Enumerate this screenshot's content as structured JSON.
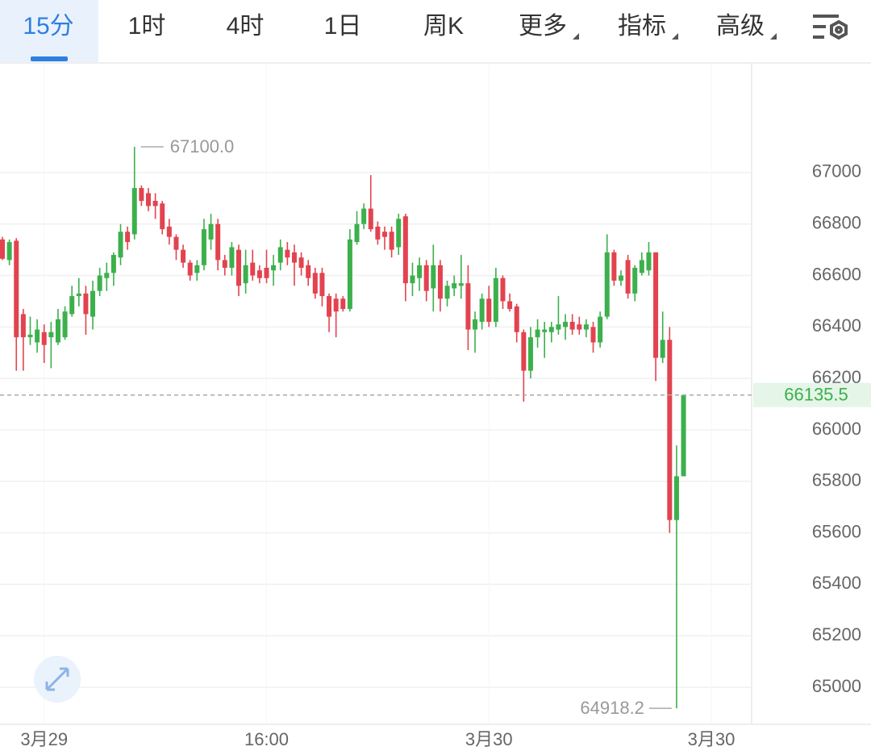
{
  "tabs": [
    "15分",
    "1时",
    "4时",
    "1日",
    "周K",
    "更多",
    "指标",
    "高级"
  ],
  "chart_data": {
    "type": "candlestick",
    "up_color": "#3cb04c",
    "down_color": "#e2434f",
    "open": [
      66740,
      66660,
      66735,
      66450,
      66360,
      66340,
      66380,
      66360,
      66340,
      66360,
      66450,
      66520,
      66530,
      66440,
      66540,
      66590,
      66610,
      66670,
      66770,
      66760,
      66940,
      66920,
      66890,
      66880,
      66790,
      66750,
      66700,
      66650,
      66610,
      66640,
      66740,
      66800,
      66660,
      66630,
      66700,
      66570,
      66650,
      66620,
      66630,
      66620,
      66650,
      66700,
      66690,
      66670,
      66640,
      66610,
      66610,
      66520,
      66510,
      66510,
      66470,
      66730,
      66800,
      66860,
      66790,
      66770,
      66770,
      66710,
      66830,
      66570,
      66590,
      66640,
      66550,
      66640,
      66510,
      66550,
      66560,
      66570,
      66390,
      66420,
      66510,
      66420,
      66590,
      66500,
      66480,
      66380,
      66230,
      66360,
      66380,
      66380,
      66390,
      66400,
      66420,
      66410,
      66390,
      66400,
      66340,
      66440,
      66690,
      66580,
      66660,
      66530,
      66610,
      66620,
      66690,
      66280,
      66350,
      65650,
      65820
    ],
    "high": [
      66750,
      66740,
      66745,
      66470,
      66440,
      66430,
      66410,
      66420,
      66470,
      66480,
      66560,
      66590,
      66560,
      66580,
      66630,
      66650,
      66690,
      66800,
      66790,
      67100,
      66950,
      66940,
      66920,
      66890,
      66820,
      66760,
      66720,
      66660,
      66660,
      66820,
      66840,
      66820,
      66680,
      66730,
      66720,
      66700,
      66700,
      66640,
      66700,
      66680,
      66740,
      66730,
      66720,
      66690,
      66660,
      66630,
      66630,
      66530,
      66530,
      66520,
      66780,
      66850,
      66880,
      66990,
      66810,
      66790,
      66790,
      66840,
      66840,
      66650,
      66670,
      66660,
      66720,
      66660,
      66580,
      66600,
      66680,
      66640,
      66460,
      66530,
      66560,
      66630,
      66600,
      66530,
      66490,
      66390,
      66400,
      66430,
      66420,
      66420,
      66520,
      66450,
      66450,
      66440,
      66430,
      66420,
      66460,
      66760,
      66700,
      66620,
      66680,
      66640,
      66690,
      66730,
      66690,
      66460,
      66400,
      65940,
      66135.5
    ],
    "low": [
      66660,
      66640,
      66230,
      66230,
      66330,
      66300,
      66260,
      66240,
      66330,
      66350,
      66440,
      66480,
      66370,
      66390,
      66520,
      66540,
      66560,
      66640,
      66700,
      66740,
      66870,
      66850,
      66820,
      66760,
      66720,
      66660,
      66630,
      66580,
      66580,
      66620,
      66700,
      66620,
      66600,
      66600,
      66520,
      66530,
      66580,
      66570,
      66570,
      66560,
      66620,
      66640,
      66560,
      66600,
      66560,
      66510,
      66480,
      66380,
      66360,
      66460,
      66460,
      66720,
      66780,
      66770,
      66720,
      66700,
      66670,
      66680,
      66500,
      66520,
      66540,
      66500,
      66460,
      66460,
      66480,
      66520,
      66510,
      66310,
      66300,
      66390,
      66400,
      66400,
      66470,
      66460,
      66340,
      66110,
      66200,
      66320,
      66280,
      66340,
      66370,
      66350,
      66370,
      66370,
      66360,
      66300,
      66320,
      66430,
      66560,
      66560,
      66510,
      66500,
      66600,
      66600,
      66190,
      66260,
      65600,
      64918.2,
      65820
    ],
    "close": [
      66665,
      66730,
      66360,
      66360,
      66370,
      66390,
      66330,
      66380,
      66430,
      66460,
      66520,
      66530,
      66450,
      66540,
      66600,
      66610,
      66680,
      66770,
      66730,
      66940,
      66890,
      66870,
      66870,
      66780,
      66750,
      66700,
      66650,
      66600,
      66640,
      66780,
      66800,
      66660,
      66630,
      66710,
      66560,
      66640,
      66600,
      66590,
      66590,
      66640,
      66710,
      66670,
      66650,
      66630,
      66590,
      66530,
      66520,
      66440,
      66460,
      66470,
      66740,
      66800,
      66860,
      66780,
      66740,
      66750,
      66700,
      66820,
      66570,
      66600,
      66640,
      66540,
      66640,
      66510,
      66560,
      66570,
      66570,
      66390,
      66430,
      66510,
      66420,
      66590,
      66500,
      66470,
      66380,
      66230,
      66360,
      66390,
      66390,
      66400,
      66410,
      66420,
      66390,
      66390,
      66410,
      66340,
      66440,
      66690,
      66580,
      66600,
      66530,
      66630,
      66660,
      66690,
      66280,
      66350,
      65650,
      65820,
      66135.5
    ],
    "ylim": [
      64856,
      67426
    ],
    "yticks": [
      65000,
      65200,
      65400,
      65600,
      65800,
      66000,
      66200,
      66400,
      66600,
      66800,
      67000
    ],
    "xlim": [
      -0.35,
      107.8
    ],
    "xticks": [
      {
        "value": 6,
        "label": "3月29"
      },
      {
        "value": 38,
        "label": "16:00"
      },
      {
        "value": 70,
        "label": "3月30"
      },
      {
        "value": 102,
        "label": "3月30"
      }
    ],
    "high_marker": {
      "value": 67100,
      "label": "67100.0"
    },
    "low_marker": 64918.2,
    "last_price": 66135.5
  }
}
